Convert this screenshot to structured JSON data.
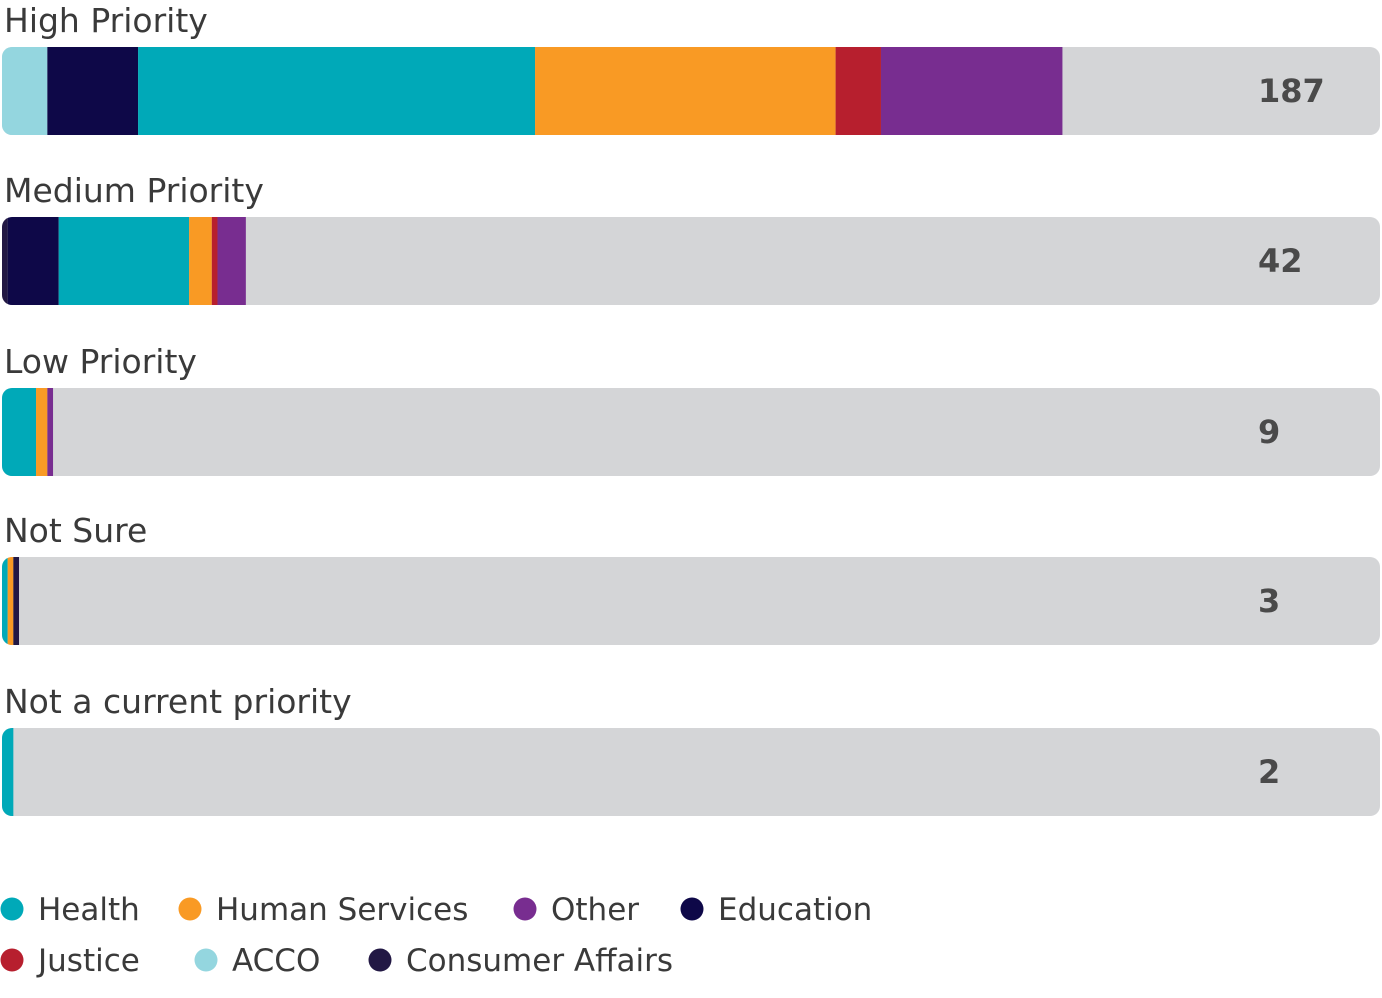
{
  "chart_data": {
    "type": "bar",
    "orientation": "horizontal",
    "stacked": true,
    "categories": [
      "High Priority",
      "Medium Priority",
      "Low Priority",
      "Not Sure",
      "Not a current priority"
    ],
    "totals": [
      187,
      42,
      9,
      3,
      2
    ],
    "xlim": [
      0,
      243
    ],
    "series": [
      {
        "name": "ACCO",
        "color": "#94d6df",
        "values": [
          8,
          0,
          0,
          0,
          0
        ]
      },
      {
        "name": "Consumer Affairs",
        "color": "#221844",
        "values": [
          0,
          1,
          0,
          0,
          0
        ]
      },
      {
        "name": "Education",
        "color": "#0e0848",
        "values": [
          16,
          9,
          0,
          0,
          0
        ]
      },
      {
        "name": "Health",
        "color": "#00a9b8",
        "values": [
          70,
          23,
          6,
          1,
          2
        ]
      },
      {
        "name": "Human Services",
        "color": "#f99a24",
        "values": [
          53,
          4,
          2,
          1,
          0
        ]
      },
      {
        "name": "Justice",
        "color": "#b71f2e",
        "values": [
          8,
          1,
          0,
          0,
          0
        ]
      },
      {
        "name": "Other",
        "color": "#782d90",
        "values": [
          32,
          5,
          1,
          0,
          0
        ]
      },
      {
        "name": "Consumer Affairs",
        "color": "#221844",
        "values": [
          0,
          0,
          0,
          1,
          0
        ]
      }
    ],
    "legend": {
      "placement": "bottom",
      "entries": [
        {
          "name": "Health",
          "color": "#00a9b8"
        },
        {
          "name": "Human Services",
          "color": "#f99a24"
        },
        {
          "name": "Other",
          "color": "#782d90"
        },
        {
          "name": "Education",
          "color": "#0e0848"
        },
        {
          "name": "Justice",
          "color": "#b71f2e"
        },
        {
          "name": "ACCO",
          "color": "#94d6df"
        },
        {
          "name": "Consumer Affairs",
          "color": "#221844"
        }
      ]
    },
    "track_color": "#d4d5d7",
    "grid": false
  }
}
